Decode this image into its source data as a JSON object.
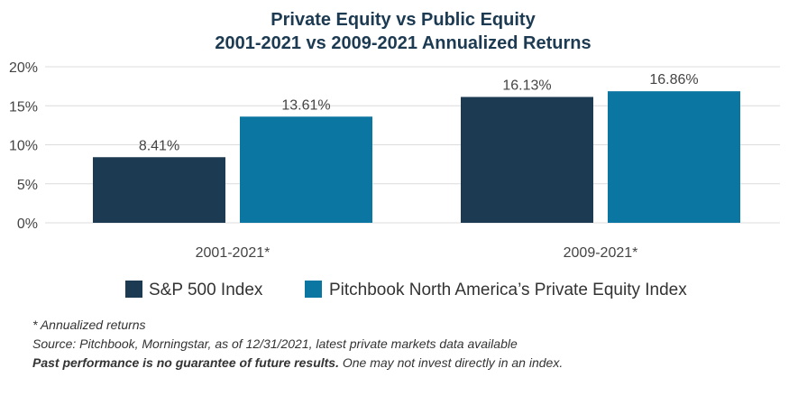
{
  "chart_data": {
    "type": "bar",
    "title_lines": [
      "Private Equity vs Public Equity",
      "2001-2021 vs 2009-2021 Annualized Returns"
    ],
    "categories": [
      "2001-2021*",
      "2009-2021*"
    ],
    "series": [
      {
        "name": "S&P 500 Index",
        "color": "#1c3a52",
        "values": [
          8.41,
          16.13
        ],
        "labels": [
          "8.41%",
          "16.13%"
        ]
      },
      {
        "name": "Pitchbook North America’s Private Equity Index",
        "color": "#0c76a3",
        "values": [
          13.61,
          16.86
        ],
        "labels": [
          "13.61%",
          "16.86%"
        ]
      }
    ],
    "ylim": [
      0,
      20
    ],
    "yticks": [
      0,
      5,
      10,
      15,
      20
    ],
    "ytick_labels": [
      "0%",
      "5%",
      "10%",
      "15%",
      "20%"
    ],
    "grid": true,
    "legend_position": "bottom"
  },
  "notes": {
    "line1": "* Annualized returns",
    "line2": "Source: Pitchbook, Morningstar, as of 12/31/2021, latest private markets data available",
    "line3_bold": "Past performance is no guarantee of future results.",
    "line3_rest": " One may not invest directly in an index."
  }
}
